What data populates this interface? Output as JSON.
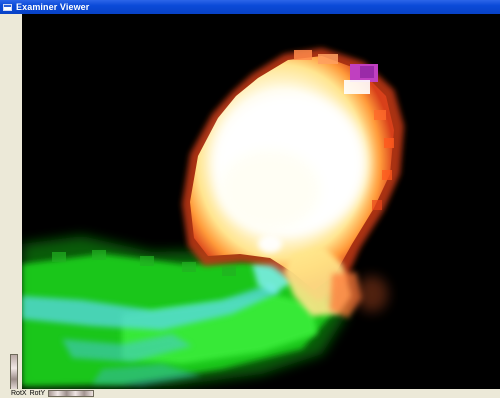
{
  "window": {
    "title": "Examiner Viewer"
  },
  "statusbar": {
    "rotx_label": "RotX",
    "roty_label": "RotY"
  },
  "colors": {
    "titlebar": "#0a4ad8",
    "frame": "#ece9d8",
    "viewport_background": "#000000",
    "flame_core": "#ffffff",
    "flame_edge": "#ff5a1e",
    "green_volume": "#1ed21e",
    "cyan_volume": "#5ee6e6",
    "magenta_spot": "#c040c0"
  }
}
